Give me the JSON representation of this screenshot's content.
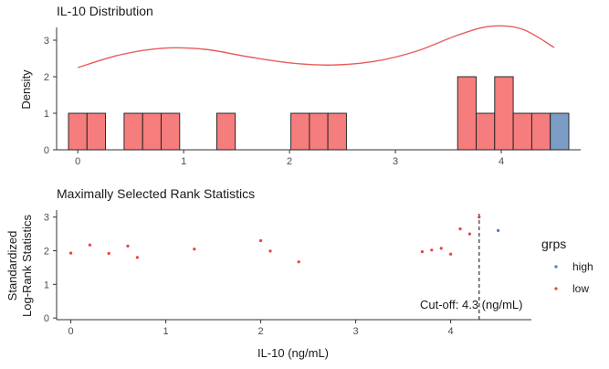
{
  "chart_data": [
    {
      "type": "bar",
      "title": "IL-10 Distribution",
      "xlabel": "",
      "ylabel": "Density",
      "xlim": [
        -0.2,
        4.75
      ],
      "ylim": [
        0,
        3.35
      ],
      "x_ticks": [
        "0",
        "1",
        "2",
        "3",
        "4"
      ],
      "y_ticks": [
        "0",
        "1",
        "2",
        "3"
      ],
      "bin_width": 0.175,
      "bins": [
        {
          "x": 0.0,
          "count": 1,
          "group": "low"
        },
        {
          "x": 0.175,
          "count": 1,
          "group": "low"
        },
        {
          "x": 0.525,
          "count": 1,
          "group": "low"
        },
        {
          "x": 0.7,
          "count": 1,
          "group": "low"
        },
        {
          "x": 0.875,
          "count": 1,
          "group": "low"
        },
        {
          "x": 1.4,
          "count": 1,
          "group": "low"
        },
        {
          "x": 2.1,
          "count": 1,
          "group": "low"
        },
        {
          "x": 2.275,
          "count": 1,
          "group": "low"
        },
        {
          "x": 2.45,
          "count": 1,
          "group": "low"
        },
        {
          "x": 3.675,
          "count": 2,
          "group": "low"
        },
        {
          "x": 3.85,
          "count": 1,
          "group": "low"
        },
        {
          "x": 4.025,
          "count": 2,
          "group": "low"
        },
        {
          "x": 4.2,
          "count": 1,
          "group": "low"
        },
        {
          "x": 4.375,
          "count": 1,
          "group": "low"
        },
        {
          "x": 4.55,
          "count": 1,
          "group": "high"
        }
      ],
      "density_curve": {
        "x": [
          0.0,
          0.4,
          0.8,
          1.2,
          1.6,
          2.0,
          2.4,
          2.8,
          3.2,
          3.6,
          3.9,
          4.2,
          4.5
        ],
        "y": [
          2.25,
          2.6,
          2.78,
          2.75,
          2.55,
          2.38,
          2.32,
          2.42,
          2.7,
          3.15,
          3.38,
          3.3,
          2.8
        ]
      },
      "grid": false
    },
    {
      "type": "scatter",
      "title": "Maximally Selected Rank Statistics",
      "xlabel": "IL-10 (ng/mL)",
      "ylabel_lines": [
        "Standardized",
        "Log-Rank Statistics"
      ],
      "xlim": [
        -0.15,
        4.85
      ],
      "ylim": [
        -0.05,
        3.1
      ],
      "x_ticks": [
        "0",
        "1",
        "2",
        "3",
        "4"
      ],
      "y_ticks": [
        "0",
        "1",
        "2",
        "3"
      ],
      "cutoff": 4.3,
      "cutoff_label": "Cut-off: 4.3 (ng/mL)",
      "points": [
        {
          "x": 0.0,
          "y": 1.93,
          "group": "low"
        },
        {
          "x": 0.2,
          "y": 2.17,
          "group": "low"
        },
        {
          "x": 0.4,
          "y": 1.92,
          "group": "low"
        },
        {
          "x": 0.6,
          "y": 2.14,
          "group": "low"
        },
        {
          "x": 0.7,
          "y": 1.8,
          "group": "low"
        },
        {
          "x": 1.3,
          "y": 2.05,
          "group": "low"
        },
        {
          "x": 2.0,
          "y": 2.3,
          "group": "low"
        },
        {
          "x": 2.1,
          "y": 1.99,
          "group": "low"
        },
        {
          "x": 2.4,
          "y": 1.67,
          "group": "low"
        },
        {
          "x": 3.7,
          "y": 1.97,
          "group": "low"
        },
        {
          "x": 3.8,
          "y": 2.02,
          "group": "low"
        },
        {
          "x": 3.9,
          "y": 2.07,
          "group": "low"
        },
        {
          "x": 4.0,
          "y": 1.9,
          "group": "low"
        },
        {
          "x": 4.1,
          "y": 2.65,
          "group": "low"
        },
        {
          "x": 4.2,
          "y": 2.5,
          "group": "low"
        },
        {
          "x": 4.3,
          "y": 3.0,
          "group": "low"
        },
        {
          "x": 4.5,
          "y": 2.6,
          "group": "high"
        }
      ],
      "legend": {
        "title": "grps",
        "placement": "right",
        "entries": [
          {
            "label": "high",
            "color": "#4a7bc0"
          },
          {
            "label": "low",
            "color": "#e8423c"
          }
        ]
      },
      "grid": false
    }
  ],
  "colors": {
    "bar_low": "#f57d7d",
    "bar_high": "#7b9cc4",
    "density_line": "#e65c5c",
    "point_low": "#e8423c",
    "point_high": "#4a7bc0",
    "text": "#1a1a1a",
    "axis_text": "#4d4d4d",
    "axis_line": "#333333"
  }
}
